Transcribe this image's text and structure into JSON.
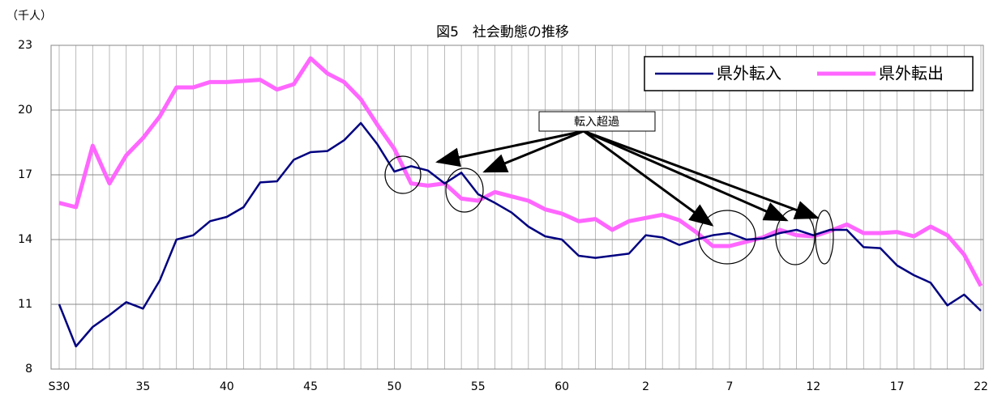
{
  "chart_data": {
    "type": "line",
    "title": "図5　社会動態の推移",
    "y_axis_label": "（千人）",
    "annotation": "転入超過",
    "categories": [
      "S30",
      null,
      null,
      null,
      null,
      "35",
      null,
      null,
      null,
      null,
      "40",
      null,
      null,
      null,
      null,
      "45",
      null,
      null,
      null,
      null,
      "50",
      null,
      null,
      null,
      null,
      "55",
      null,
      null,
      null,
      null,
      "60",
      null,
      null,
      null,
      null,
      "2",
      null,
      null,
      null,
      null,
      "7",
      null,
      null,
      null,
      null,
      "12",
      null,
      null,
      null,
      null,
      "17",
      null,
      null,
      null,
      null,
      "22"
    ],
    "series": [
      {
        "name": "県外転入",
        "color": "#000080",
        "values": [
          11.0,
          9.05,
          9.95,
          10.5,
          11.1,
          10.8,
          12.1,
          14.0,
          14.2,
          14.85,
          15.05,
          15.5,
          16.65,
          16.7,
          17.7,
          18.05,
          18.1,
          18.6,
          19.4,
          18.4,
          17.15,
          17.4,
          17.2,
          16.6,
          17.1,
          16.1,
          15.7,
          15.25,
          14.6,
          14.15,
          14.0,
          13.25,
          13.15,
          13.25,
          13.35,
          14.2,
          14.1,
          13.75,
          14.0,
          14.2,
          14.3,
          14.0,
          14.05,
          14.3,
          14.45,
          14.2,
          14.45,
          14.45,
          13.65,
          13.6,
          12.8,
          12.35,
          12.0,
          10.95,
          11.45,
          10.7
        ]
      },
      {
        "name": "県外転出",
        "color": "#ff66ff",
        "values": [
          15.7,
          15.5,
          18.35,
          16.6,
          17.9,
          18.7,
          19.7,
          21.05,
          21.05,
          21.3,
          21.3,
          21.35,
          21.4,
          20.95,
          21.2,
          22.4,
          21.7,
          21.3,
          20.5,
          19.3,
          18.2,
          16.6,
          16.5,
          16.6,
          15.9,
          15.8,
          16.2,
          16.0,
          15.8,
          15.4,
          15.2,
          14.85,
          14.95,
          14.45,
          14.85,
          15.0,
          15.15,
          14.9,
          14.35,
          13.7,
          13.7,
          13.9,
          14.1,
          14.45,
          14.2,
          14.15,
          14.4,
          14.7,
          14.3,
          14.3,
          14.35,
          14.15,
          14.6,
          14.2,
          13.3,
          11.85
        ]
      }
    ],
    "ylim": [
      8,
      23
    ],
    "yticks": [
      8,
      11,
      14,
      17,
      20,
      23
    ],
    "grid": true,
    "legend": "upper right"
  }
}
